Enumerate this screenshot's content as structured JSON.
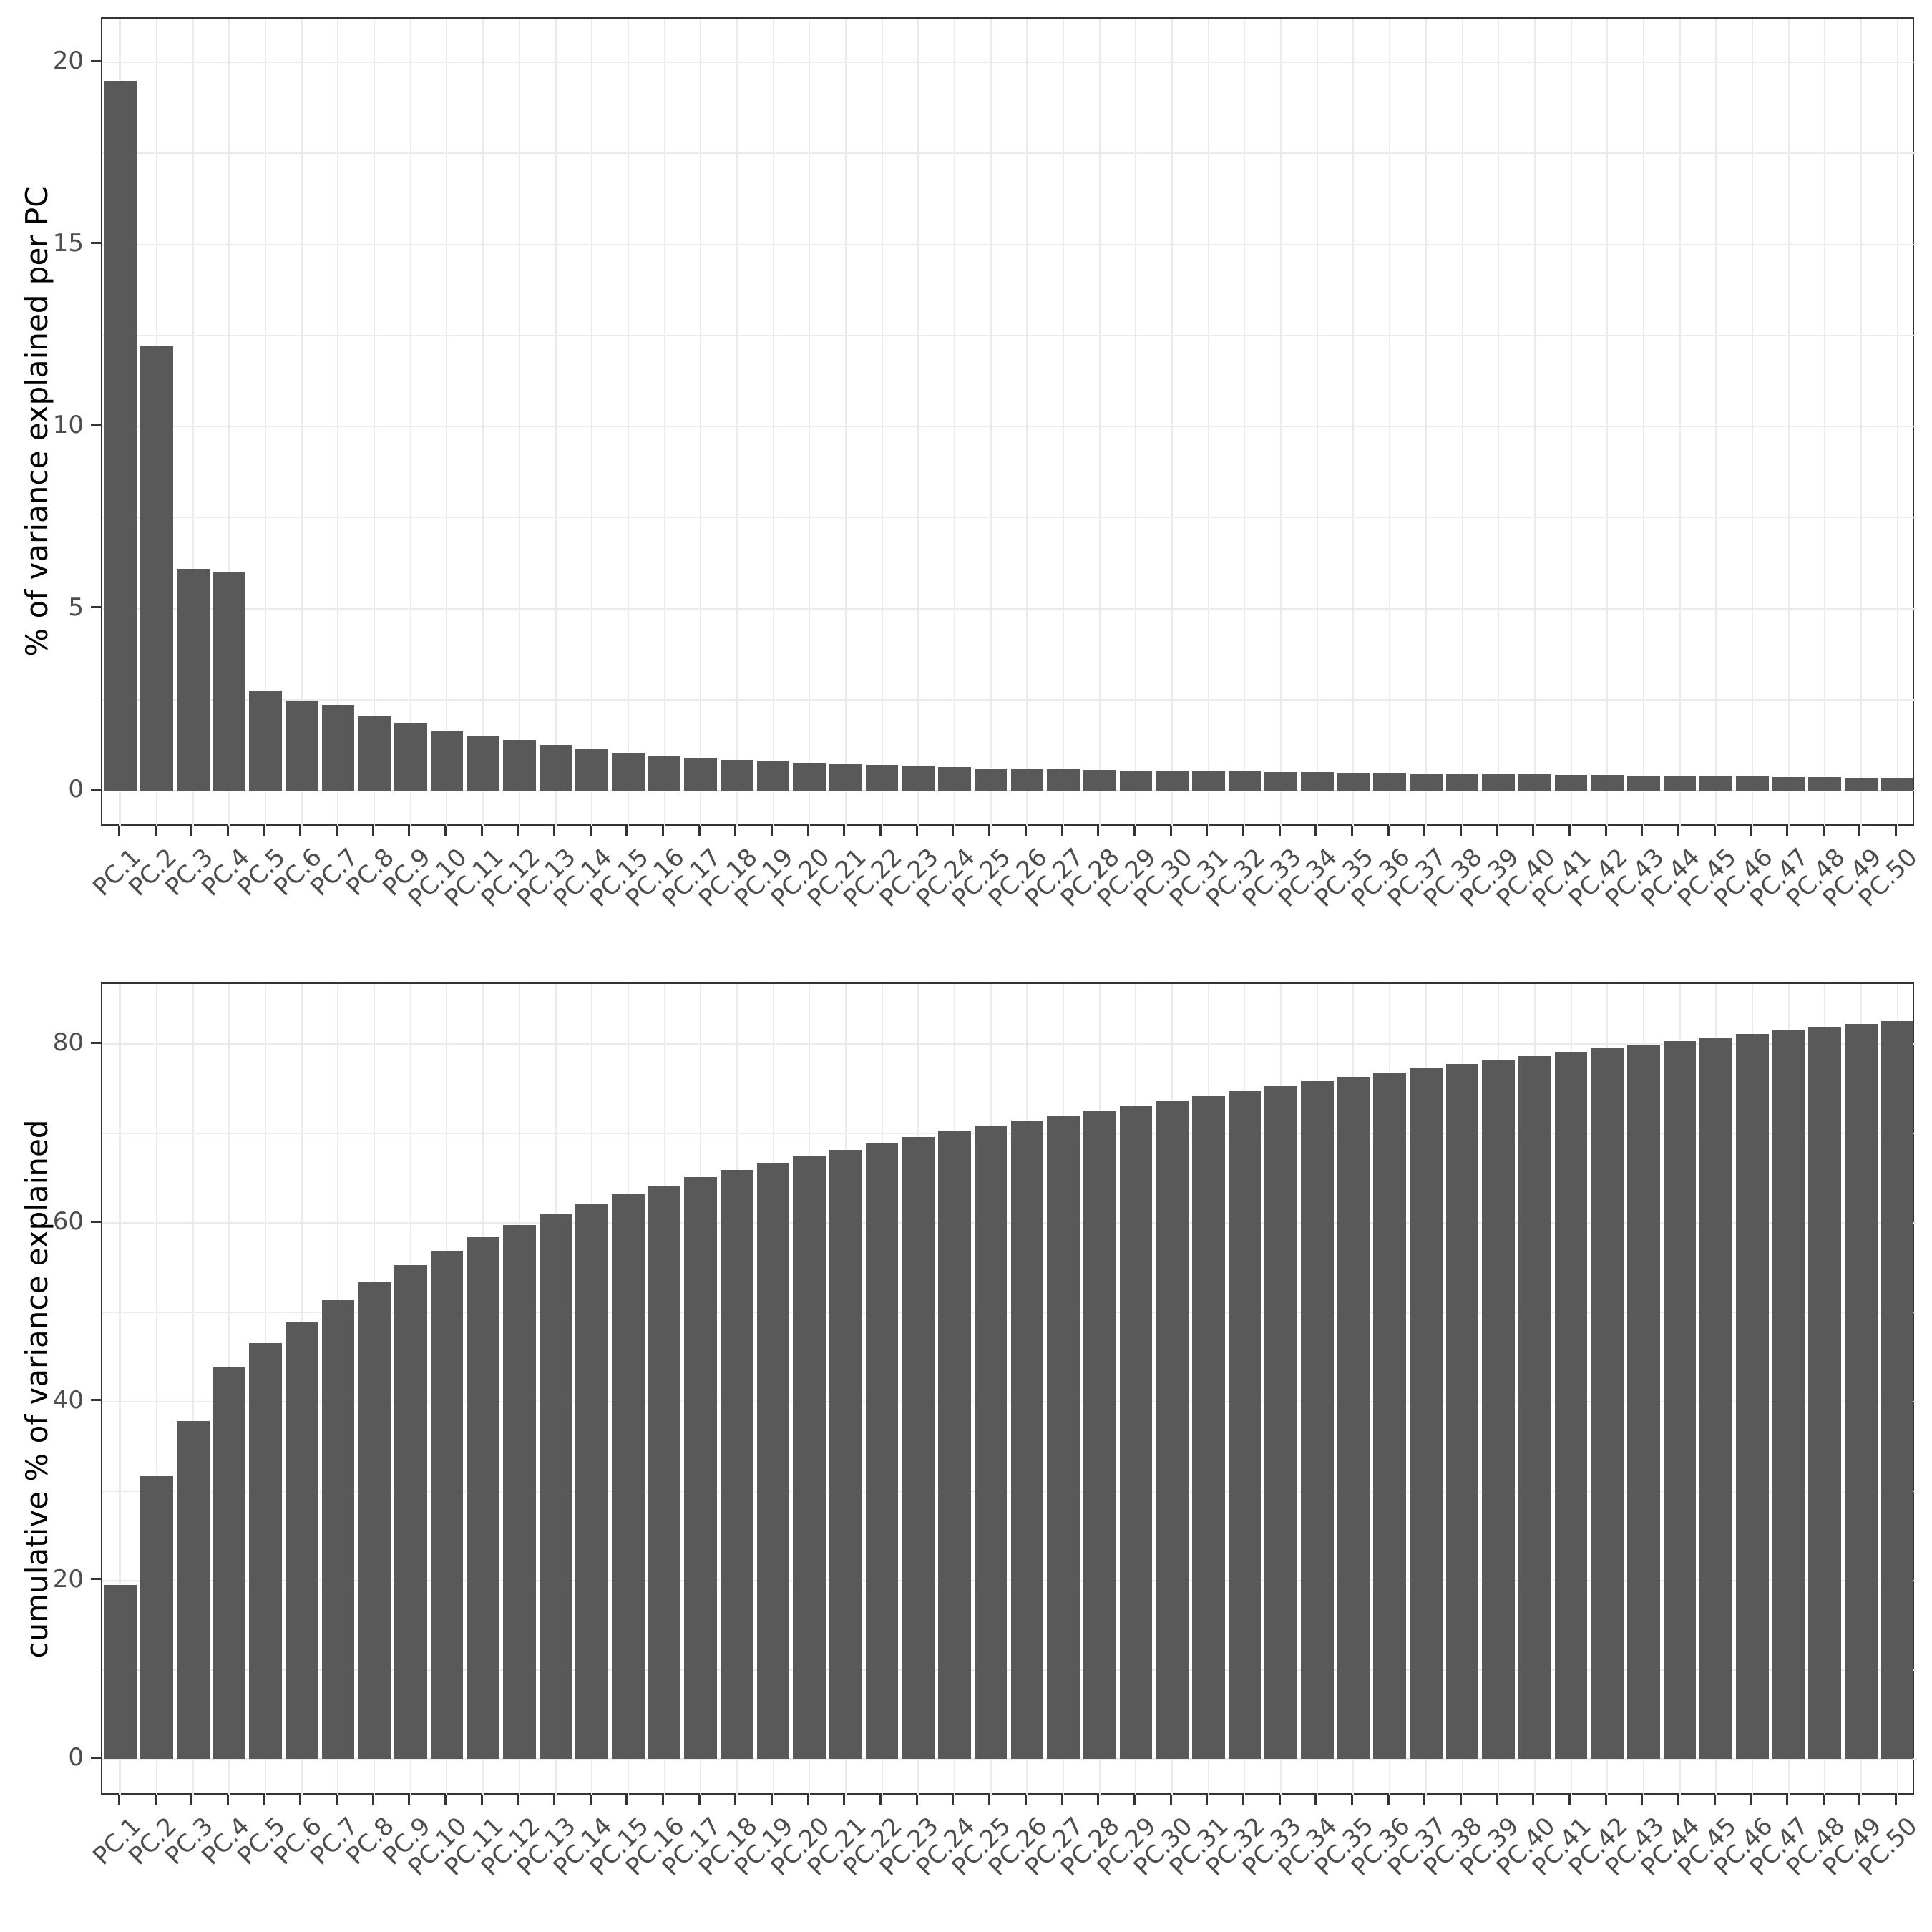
{
  "figure": {
    "background_color": "#ffffff",
    "title": "",
    "n_components_shown": 50
  },
  "style": {
    "bar_color": "#595959",
    "grid_color": "#ebebeb",
    "panel_border_color": "#333333",
    "tick_color": "#333333",
    "tick_label_color": "#4d4d4d",
    "axis_title_color": "#000000"
  },
  "chart_data": [
    {
      "type": "bar",
      "title": "",
      "xlabel": "",
      "ylabel": "% of variance explained per PC",
      "grid": "on",
      "legend": "none",
      "yticks": [
        0,
        5,
        10,
        15,
        20
      ],
      "ygridlines": [
        0,
        2.5,
        5,
        7.5,
        10,
        12.5,
        15,
        17.5,
        20
      ],
      "ylim": [
        0,
        19.5
      ],
      "ylim_expanded": [
        -1.0,
        21.2
      ],
      "categories": [
        "PC.1",
        "PC.2",
        "PC.3",
        "PC.4",
        "PC.5",
        "PC.6",
        "PC.7",
        "PC.8",
        "PC.9",
        "PC.10",
        "PC.11",
        "PC.12",
        "PC.13",
        "PC.14",
        "PC.15",
        "PC.16",
        "PC.17",
        "PC.18",
        "PC.19",
        "PC.20",
        "PC.21",
        "PC.22",
        "PC.23",
        "PC.24",
        "PC.25",
        "PC.26",
        "PC.27",
        "PC.28",
        "PC.29",
        "PC.30",
        "PC.31",
        "PC.32",
        "PC.33",
        "PC.34",
        "PC.35",
        "PC.36",
        "PC.37",
        "PC.38",
        "PC.39",
        "PC.40",
        "PC.41",
        "PC.42",
        "PC.43",
        "PC.44",
        "PC.45",
        "PC.46",
        "PC.47",
        "PC.48",
        "PC.49",
        "PC.50"
      ],
      "values": [
        19.5,
        12.2,
        6.1,
        6.0,
        2.75,
        2.45,
        2.35,
        2.05,
        1.85,
        1.65,
        1.5,
        1.4,
        1.25,
        1.15,
        1.05,
        0.95,
        0.9,
        0.85,
        0.8,
        0.75,
        0.72,
        0.7,
        0.67,
        0.65,
        0.62,
        0.6,
        0.59,
        0.57,
        0.56,
        0.55,
        0.54,
        0.53,
        0.52,
        0.51,
        0.5,
        0.49,
        0.48,
        0.47,
        0.46,
        0.45,
        0.44,
        0.43,
        0.42,
        0.41,
        0.4,
        0.39,
        0.38,
        0.37,
        0.36,
        0.35
      ]
    },
    {
      "type": "bar",
      "title": "",
      "xlabel": "",
      "ylabel": "cumulative % of variance explained",
      "grid": "on",
      "legend": "none",
      "yticks": [
        0,
        20,
        40,
        60,
        80
      ],
      "ygridlines": [
        0,
        10,
        20,
        30,
        40,
        50,
        60,
        70,
        80
      ],
      "ylim": [
        0,
        82.63
      ],
      "ylim_expanded": [
        -4.13,
        86.76
      ],
      "categories": [
        "PC.1",
        "PC.2",
        "PC.3",
        "PC.4",
        "PC.5",
        "PC.6",
        "PC.7",
        "PC.8",
        "PC.9",
        "PC.10",
        "PC.11",
        "PC.12",
        "PC.13",
        "PC.14",
        "PC.15",
        "PC.16",
        "PC.17",
        "PC.18",
        "PC.19",
        "PC.20",
        "PC.21",
        "PC.22",
        "PC.23",
        "PC.24",
        "PC.25",
        "PC.26",
        "PC.27",
        "PC.28",
        "PC.29",
        "PC.30",
        "PC.31",
        "PC.32",
        "PC.33",
        "PC.34",
        "PC.35",
        "PC.36",
        "PC.37",
        "PC.38",
        "PC.39",
        "PC.40",
        "PC.41",
        "PC.42",
        "PC.43",
        "PC.44",
        "PC.45",
        "PC.46",
        "PC.47",
        "PC.48",
        "PC.49",
        "PC.50"
      ],
      "values": [
        19.5,
        31.7,
        37.8,
        43.8,
        46.55,
        49.0,
        51.35,
        53.4,
        55.25,
        56.9,
        58.4,
        59.8,
        61.05,
        62.2,
        63.25,
        64.2,
        65.1,
        65.95,
        66.75,
        67.5,
        68.22,
        68.92,
        69.59,
        70.24,
        70.86,
        71.46,
        72.05,
        72.62,
        73.18,
        73.73,
        74.27,
        74.8,
        75.32,
        75.83,
        76.33,
        76.82,
        77.3,
        77.77,
        78.23,
        78.68,
        79.12,
        79.55,
        79.97,
        80.38,
        80.78,
        81.17,
        81.55,
        81.92,
        82.28,
        82.63
      ]
    }
  ]
}
